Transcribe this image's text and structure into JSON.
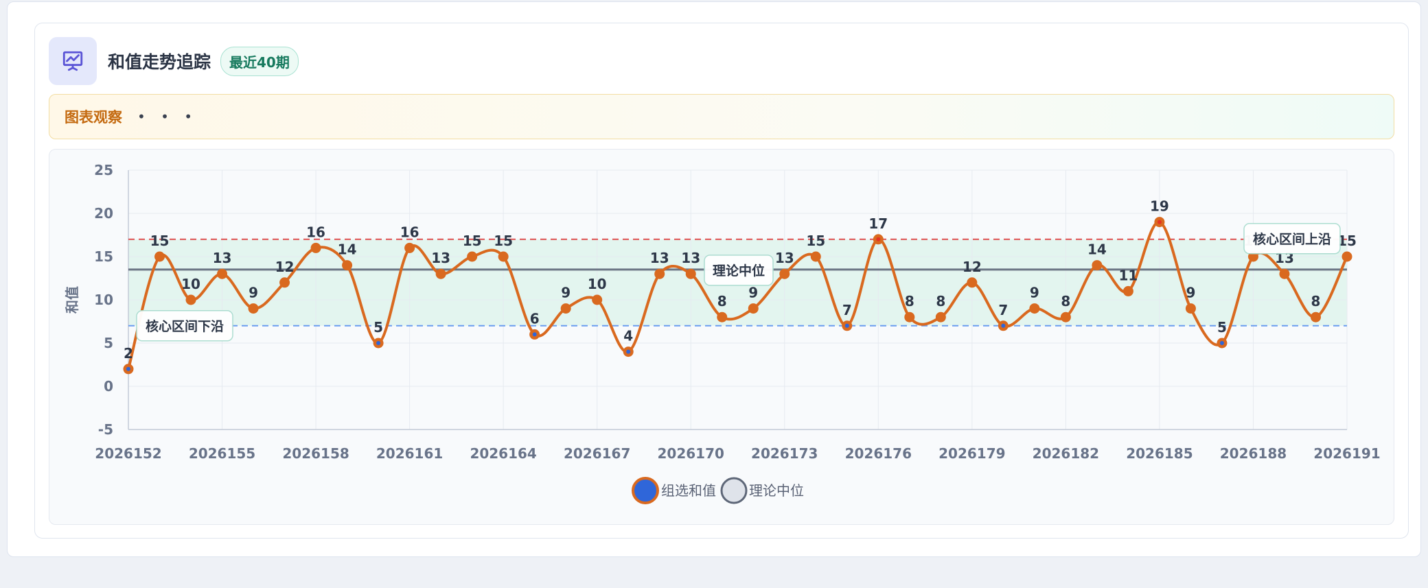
{
  "header": {
    "title": "和值走势追踪",
    "badge": "最近40期",
    "icon": "presentation-chart-icon"
  },
  "observation": {
    "label": "图表观察",
    "more": "• • •"
  },
  "colors": {
    "line": "#d9691f",
    "marker_low": "#2f66d9",
    "marker_high": "#e53222",
    "band": "#dff3ec",
    "upper_line": "#e05252",
    "lower_line": "#6a9cf0",
    "median_line": "#5e6778"
  },
  "chart_data": {
    "type": "line",
    "ylabel": "和值",
    "xlabel": "",
    "ylim": [
      -5,
      25
    ],
    "yticks": [
      -5,
      0,
      5,
      10,
      15,
      20,
      25
    ],
    "x": [
      2026152,
      2026153,
      2026154,
      2026155,
      2026156,
      2026157,
      2026158,
      2026159,
      2026160,
      2026161,
      2026162,
      2026163,
      2026164,
      2026165,
      2026166,
      2026167,
      2026168,
      2026169,
      2026170,
      2026171,
      2026172,
      2026173,
      2026174,
      2026175,
      2026176,
      2026177,
      2026178,
      2026179,
      2026180,
      2026181,
      2026182,
      2026183,
      2026184,
      2026185,
      2026186,
      2026187,
      2026188,
      2026189,
      2026190,
      2026191
    ],
    "xticks": [
      "2026152",
      "2026155",
      "2026158",
      "2026161",
      "2026164",
      "2026167",
      "2026170",
      "2026173",
      "2026176",
      "2026179",
      "2026182",
      "2026185",
      "2026188",
      "2026191"
    ],
    "series": [
      {
        "name": "组选和值",
        "values": [
          2,
          15,
          10,
          13,
          9,
          12,
          16,
          14,
          5,
          16,
          13,
          15,
          15,
          6,
          9,
          10,
          4,
          13,
          13,
          8,
          9,
          13,
          15,
          7,
          17,
          8,
          8,
          12,
          7,
          9,
          8,
          14,
          11,
          19,
          9,
          5,
          15,
          13,
          8,
          15
        ]
      },
      {
        "name": "理论中位",
        "value": 13.5
      }
    ],
    "core_band": {
      "lower": 7,
      "upper": 17
    },
    "annotations": {
      "lower": "核心区间下沿",
      "upper": "核心区间上沿",
      "median": "理论中位"
    },
    "legend_position": "bottom-center",
    "grid": true
  }
}
